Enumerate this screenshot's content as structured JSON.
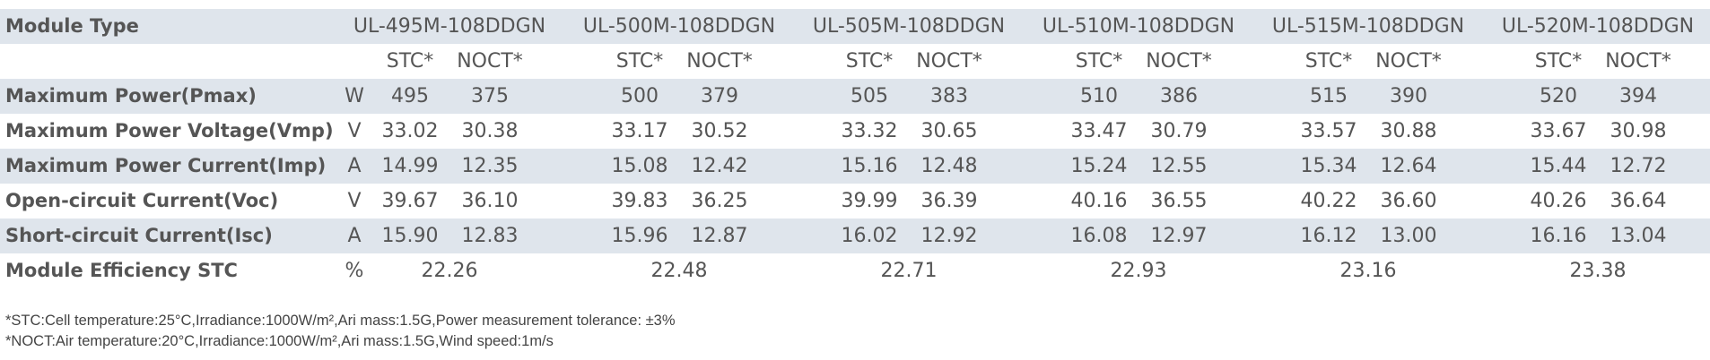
{
  "table": {
    "header": {
      "label": "Module Type",
      "models": [
        "UL-495M-108DDGN",
        "UL-500M-108DDGN",
        "UL-505M-108DDGN",
        "UL-510M-108DDGN",
        "UL-515M-108DDGN",
        "UL-520M-108DDGN"
      ]
    },
    "subheader": [
      [
        "STC*",
        "NOCT*"
      ],
      [
        "STC*",
        "NOCT*"
      ],
      [
        "STC*",
        "NOCT*"
      ],
      [
        "STC*",
        "NOCT*"
      ],
      [
        "STC*",
        "NOCT*"
      ],
      [
        "STC*",
        "NOCT*"
      ]
    ],
    "rows": [
      {
        "label": "Maximum Power(Pmax)",
        "unit": "W",
        "values": [
          "495",
          "375",
          "500",
          "379",
          "505",
          "383",
          "510",
          "386",
          "515",
          "390",
          "520",
          "394"
        ]
      },
      {
        "label": "Maximum Power Voltage(Vmp)",
        "unit": "V",
        "values": [
          "33.02",
          "30.38",
          "33.17",
          "30.52",
          "33.32",
          "30.65",
          "33.47",
          "30.79",
          "33.57",
          "30.88",
          "33.67",
          "30.98"
        ]
      },
      {
        "label": "Maximum Power Current(Imp)",
        "unit": "A",
        "values": [
          "14.99",
          "12.35",
          "15.08",
          "12.42",
          "15.16",
          "12.48",
          "15.24",
          "12.55",
          "15.34",
          "12.64",
          "15.44",
          "12.72"
        ]
      },
      {
        "label": "Open-circuit Current(Voc)",
        "unit": "V",
        "values": [
          "39.67",
          "36.10",
          "39.83",
          "36.25",
          "39.99",
          "36.39",
          "40.16",
          "36.55",
          "40.22",
          "36.60",
          "40.26",
          "36.64"
        ]
      },
      {
        "label": "Short-circuit Current(Isc)",
        "unit": "A",
        "values": [
          "15.90",
          "12.83",
          "15.96",
          "12.87",
          "16.02",
          "12.92",
          "16.08",
          "12.97",
          "16.12",
          "13.00",
          "16.16",
          "13.04"
        ]
      }
    ],
    "efficiency": {
      "label": "Module Efficiency STC",
      "unit": "%",
      "values": [
        "22.26",
        "22.48",
        "22.71",
        "22.93",
        "23.16",
        "23.38"
      ]
    }
  },
  "footnotes": [
    "*STC:Cell temperature:25°C,Irradiance:1000W/m²,Ari mass:1.5G,Power measurement tolerance: ±3%",
    "*NOCT:Air temperature:20°C,Irradiance:1000W/m²,Ari mass:1.5G,Wind speed:1m/s"
  ]
}
